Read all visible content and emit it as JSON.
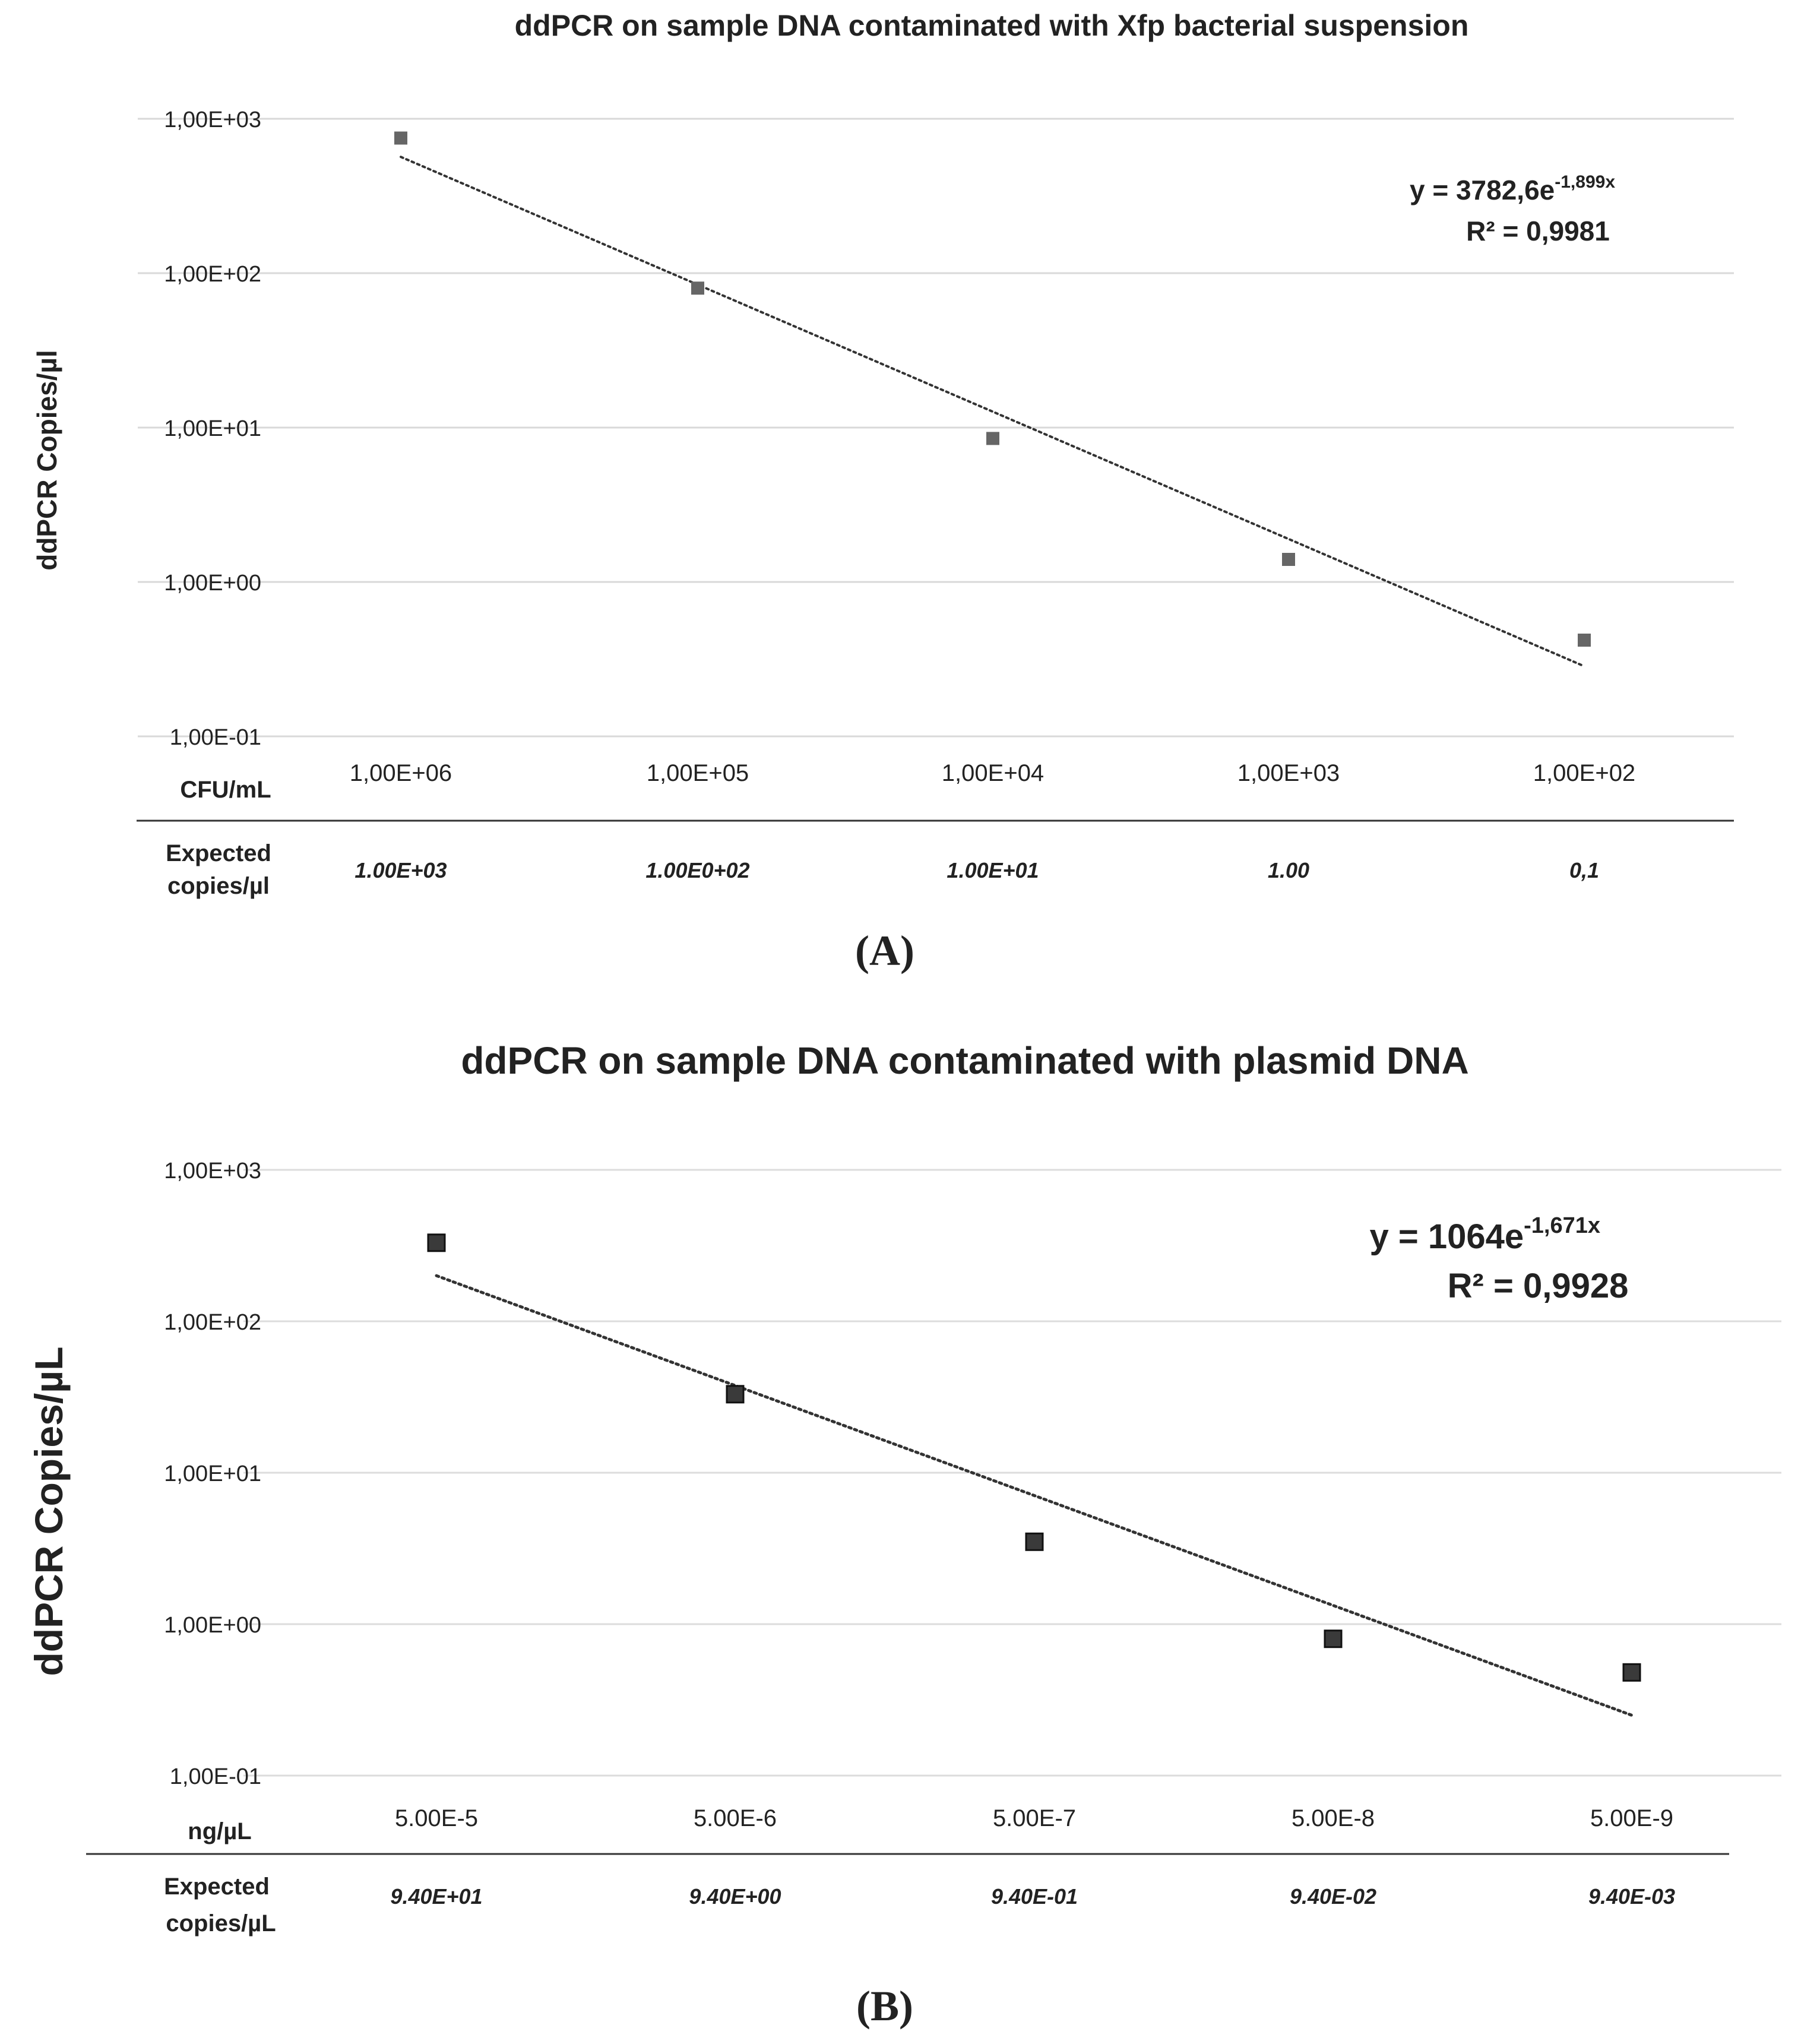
{
  "chart_data": [
    {
      "type": "scatter",
      "panel_label": "(A)",
      "title": "ddPCR on sample DNA contaminated with Xfp bacterial suspension",
      "ylabel": "ddPCR Copies/µl",
      "yscale": "log",
      "ylim": [
        0.1,
        1000
      ],
      "yticks": [
        "1,00E+03",
        "1,00E+02",
        "1,00E+01",
        "1,00E+00",
        "1,00E-01"
      ],
      "x_row_label": "CFU/mL",
      "categories": [
        "1,00E+06",
        "1,00E+05",
        "1,00E+04",
        "1,00E+03",
        "1,00E+02"
      ],
      "expected_label": [
        "Expected",
        "copies/µl"
      ],
      "expected": [
        "1.00E+03",
        "1.00E0+02",
        "1.00E+01",
        "1.00",
        "0,1"
      ],
      "series": [
        {
          "name": "ddPCR",
          "values": [
            750,
            80,
            8.5,
            1.4,
            0.42
          ],
          "color": "#666666"
        }
      ],
      "trendline": {
        "type": "exponential",
        "a": 3782.6,
        "b": -1.899,
        "equation_base": "y = 3782,6e",
        "equation_exp": "-1,899x",
        "r2_text": "R² = 0,9981"
      },
      "grid": true
    },
    {
      "type": "scatter",
      "panel_label": "(B)",
      "title": "ddPCR on sample DNA contaminated with plasmid DNA",
      "ylabel": "ddPCR Copies/µL",
      "yscale": "log",
      "ylim": [
        0.1,
        1000
      ],
      "yticks": [
        "1,00E+03",
        "1,00E+02",
        "1,00E+01",
        "1,00E+00",
        "1,00E-01"
      ],
      "x_row_label": "ng/µL",
      "categories": [
        "5.00E-5",
        "5.00E-6",
        "5.00E-7",
        "5.00E-8",
        "5.00E-9"
      ],
      "expected_label": [
        "Expected",
        "copies/µL"
      ],
      "expected": [
        "9.40E+01",
        "9.40E+00",
        "9.40E-01",
        "9.40E-02",
        "9.40E-03"
      ],
      "series": [
        {
          "name": "ddPCR",
          "values": [
            330,
            33,
            3.5,
            0.8,
            0.48
          ],
          "color": "#3a3a3a"
        }
      ],
      "trendline": {
        "type": "exponential",
        "a": 1064,
        "b": -1.671,
        "equation_base": "y = 1064e",
        "equation_exp": "-1,671x",
        "r2_text": "R² = 0,9928"
      },
      "grid": true
    }
  ]
}
